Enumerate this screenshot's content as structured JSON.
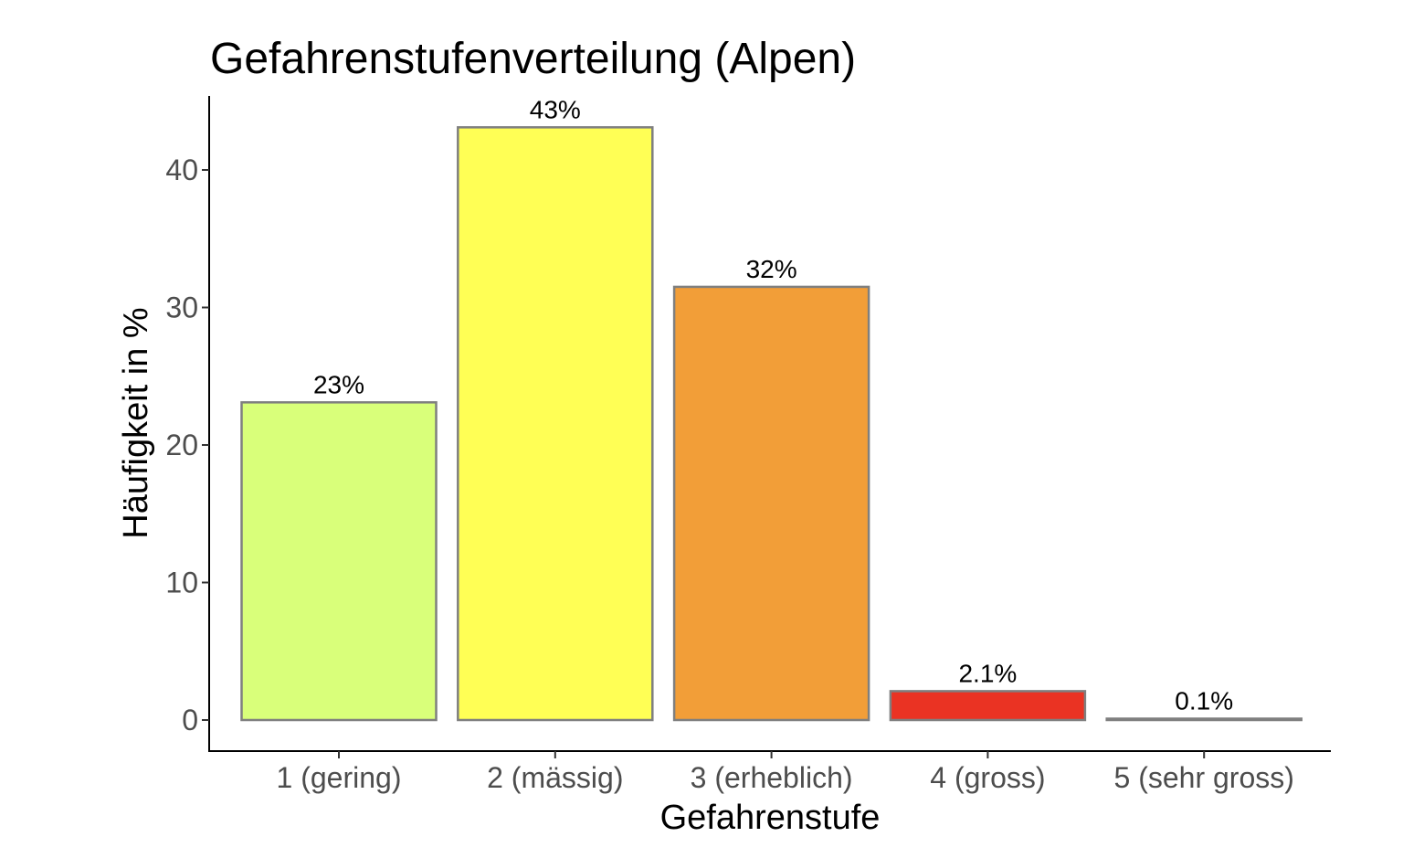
{
  "chart_data": {
    "type": "bar",
    "title": "Gefahrenstufenverteilung (Alpen)",
    "xlabel": "Gefahrenstufe",
    "ylabel": "Häufigkeit in %",
    "categories": [
      "1 (gering)",
      "2 (mässig)",
      "3 (erheblich)",
      "4 (gross)",
      "5 (sehr gross)"
    ],
    "values": [
      23.1,
      43.1,
      31.5,
      2.1,
      0.1
    ],
    "value_labels": [
      "23%",
      "43%",
      "32%",
      "2.1%",
      "0.1%"
    ],
    "colors": [
      "#d9ff7a",
      "#ffff55",
      "#f29e38",
      "#ea3323",
      "#7f7f7f"
    ],
    "ylim": [
      0,
      45
    ],
    "yticks": [
      0,
      10,
      20,
      30,
      40
    ],
    "grid": false,
    "legend": "none"
  }
}
